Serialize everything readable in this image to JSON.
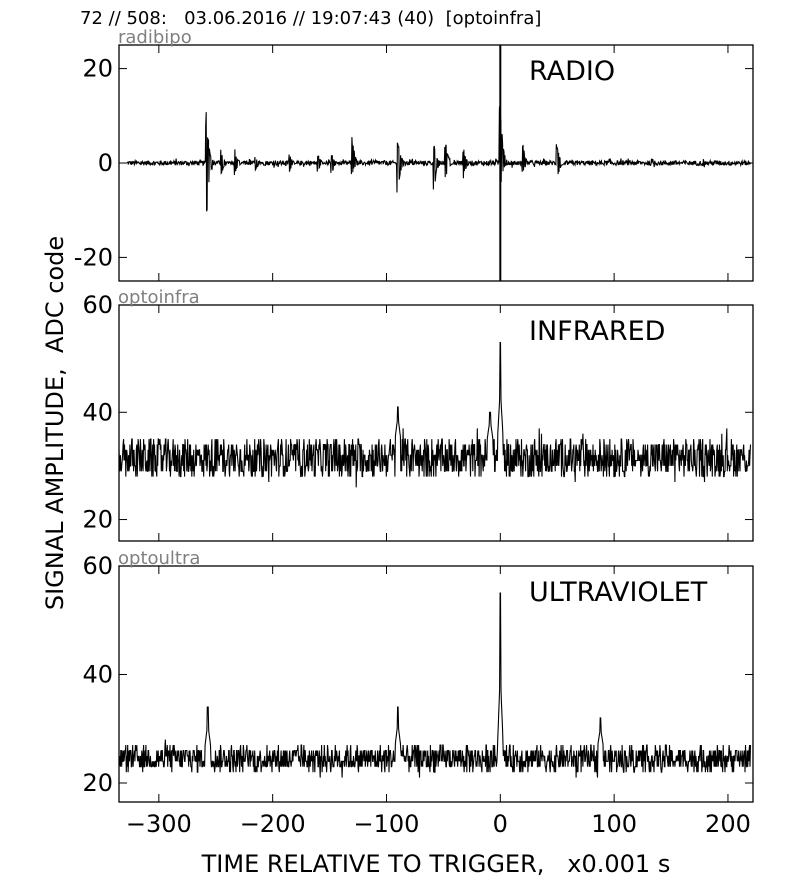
{
  "header": {
    "title": "72 // 508:   03.06.2016 // 19:07:43 (40)  [optoinfra]"
  },
  "chart_data": {
    "type": "line",
    "xlabel": "TIME RELATIVE TO TRIGGER,   x0.001 s",
    "ylabel": "SIGNAL AMPLITUDE,  ADC code",
    "xlim": [
      -335,
      222
    ],
    "xticks": [
      -300,
      -200,
      -100,
      0,
      100,
      200
    ],
    "xtick_labels": [
      "−300",
      "−200",
      "−100",
      "0",
      "100",
      "200"
    ],
    "panels": [
      {
        "channel": "radibipo",
        "label": "RADIO",
        "ylim": [
          -25,
          25
        ],
        "yticks": [
          -20,
          0,
          20
        ],
        "ytick_labels": [
          "-20",
          "0",
          "20"
        ],
        "baseline": 0,
        "noise": 0.5,
        "x_start": -328,
        "x_end": 220,
        "bursts": [
          {
            "x": -258,
            "up": 11.5,
            "down": -14.5
          },
          {
            "x": -245,
            "up": 3,
            "down": -3
          },
          {
            "x": -233,
            "up": 3,
            "down": -3
          },
          {
            "x": -215,
            "up": 2,
            "down": -2
          },
          {
            "x": -185,
            "up": 2,
            "down": -2
          },
          {
            "x": -160,
            "up": 2,
            "down": -2
          },
          {
            "x": -148,
            "up": 2,
            "down": -2.5
          },
          {
            "x": -130,
            "up": 6,
            "down": -3.5
          },
          {
            "x": -90,
            "up": 6,
            "down": -8.5
          },
          {
            "x": -58,
            "up": 4.5,
            "down": -6
          },
          {
            "x": -48,
            "up": 5.5,
            "down": -4.5
          },
          {
            "x": -32,
            "up": 3,
            "down": -3.5
          },
          {
            "x": 0,
            "up": 14,
            "down": -6
          },
          {
            "x": 20,
            "up": 4,
            "down": -2.5
          },
          {
            "x": 50,
            "up": 4,
            "down": -4.5
          }
        ],
        "trigger_line": {
          "x": 0,
          "from": -25,
          "to": 25
        }
      },
      {
        "channel": "optoinfra",
        "label": "INFRARED",
        "ylim": [
          16,
          60
        ],
        "yticks": [
          20,
          40,
          60
        ],
        "ytick_labels": [
          "20",
          "40",
          "60"
        ],
        "baseline": 31.5,
        "noise": 3.5,
        "x_start": -335,
        "x_end": 220,
        "peaks": [
          {
            "x": 0,
            "value": 53
          },
          {
            "x": -9,
            "value": 40
          },
          {
            "x": -90,
            "value": 41
          }
        ]
      },
      {
        "channel": "optoultra",
        "label": "ULTRAVIOLET",
        "ylim": [
          16.5,
          60
        ],
        "yticks": [
          20,
          40,
          60
        ],
        "ytick_labels": [
          "20",
          "40",
          "60"
        ],
        "baseline": 24.5,
        "noise": 2.3,
        "x_start": -335,
        "x_end": 220,
        "peaks": [
          {
            "x": 0,
            "value": 55
          },
          {
            "x": -257,
            "value": 34
          },
          {
            "x": -90,
            "value": 34
          },
          {
            "x": 88,
            "value": 32
          }
        ]
      }
    ]
  },
  "colors": {
    "trace": "#000000",
    "channel_label": "#808080",
    "axes": "#000000"
  }
}
